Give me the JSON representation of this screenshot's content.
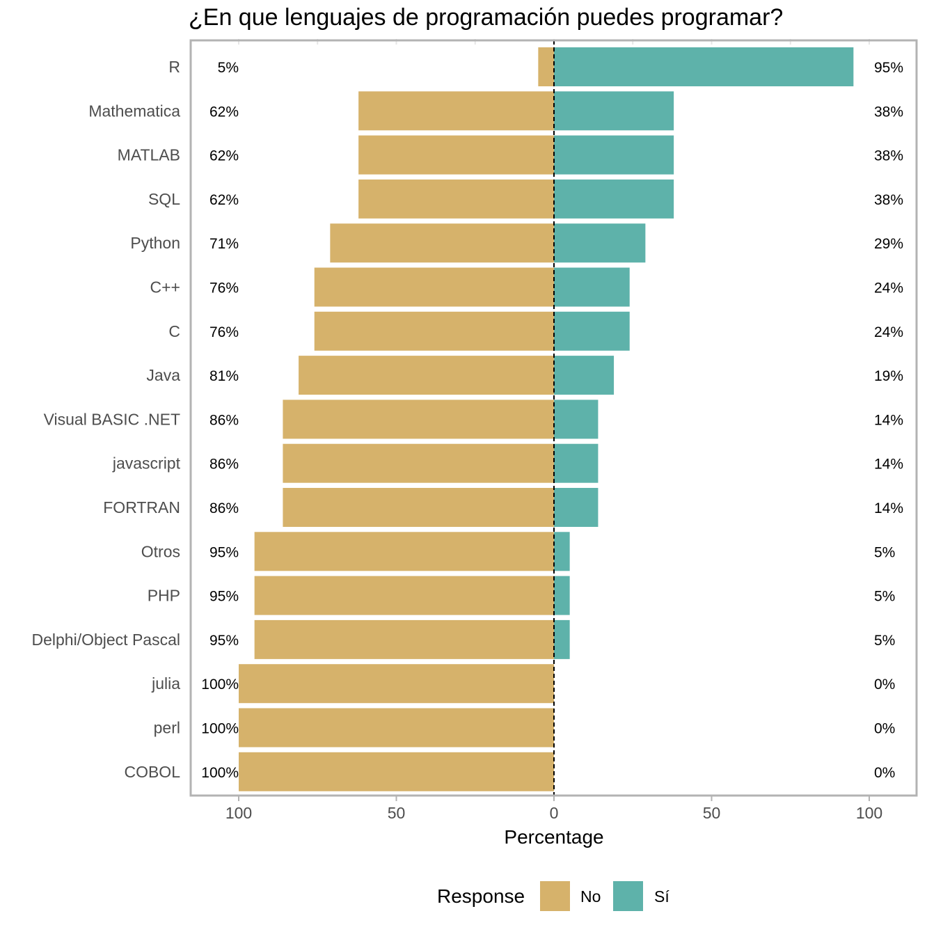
{
  "chart_data": {
    "type": "bar",
    "orientation": "horizontal-diverging",
    "title": "¿En que lenguajes de programación puedes programar?",
    "xlabel": "Percentage",
    "xlim": [
      -100,
      100
    ],
    "x_ticks": [
      {
        "value": -100,
        "label": "100"
      },
      {
        "value": -50,
        "label": "50"
      },
      {
        "value": 0,
        "label": "0"
      },
      {
        "value": 50,
        "label": "50"
      },
      {
        "value": 100,
        "label": "100"
      }
    ],
    "grid": false,
    "legend": {
      "title": "Response",
      "position": "bottom"
    },
    "categories": [
      "R",
      "Mathematica",
      "MATLAB",
      "SQL",
      "Python",
      "C++",
      "C",
      "Java",
      "Visual BASIC .NET",
      "javascript",
      "FORTRAN",
      "Otros",
      "PHP",
      "Delphi/Object Pascal",
      "julia",
      "perl",
      "COBOL"
    ],
    "series": [
      {
        "name": "No",
        "color": "#d6b26b",
        "values": [
          5,
          62,
          62,
          62,
          71,
          76,
          76,
          81,
          86,
          86,
          86,
          95,
          95,
          95,
          100,
          100,
          100
        ],
        "labels": [
          "5%",
          "62%",
          "62%",
          "62%",
          "71%",
          "76%",
          "76%",
          "81%",
          "86%",
          "86%",
          "86%",
          "95%",
          "95%",
          "95%",
          "100%",
          "100%",
          "100%"
        ]
      },
      {
        "name": "Sí",
        "color": "#5eb2aa",
        "values": [
          95,
          38,
          38,
          38,
          29,
          24,
          24,
          19,
          14,
          14,
          14,
          5,
          5,
          5,
          0,
          0,
          0
        ],
        "labels": [
          "95%",
          "38%",
          "38%",
          "38%",
          "29%",
          "24%",
          "24%",
          "19%",
          "14%",
          "14%",
          "14%",
          "5%",
          "5%",
          "5%",
          "0%",
          "0%",
          "0%"
        ]
      }
    ]
  }
}
